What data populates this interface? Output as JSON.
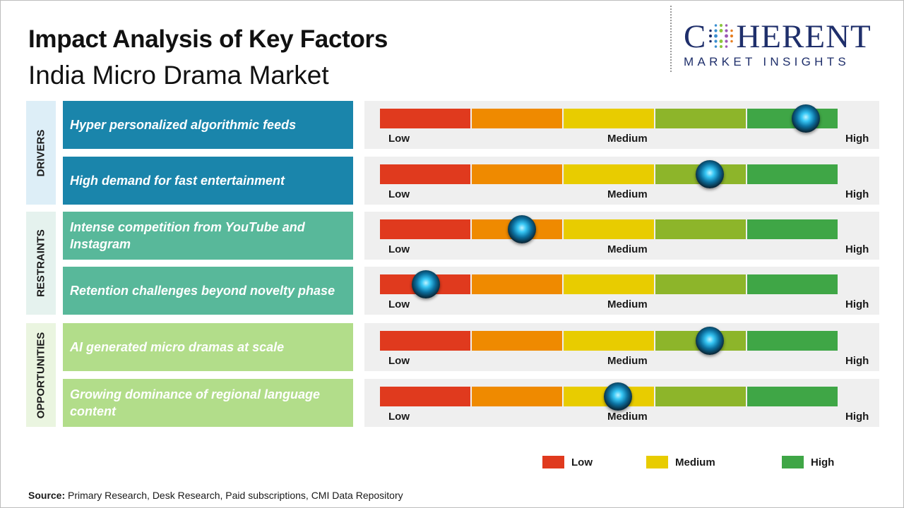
{
  "title": "Impact Analysis of Key Factors",
  "subtitle": "India Micro Drama Market",
  "logo": {
    "word_left": "C",
    "word_right": "HERENT",
    "sub": "MARKET INSIGHTS"
  },
  "colors": {
    "low": "#e03a1e",
    "low_medium": "#ef8a00",
    "medium": "#e8cc00",
    "medium_high": "#8db52a",
    "high": "#3fa646",
    "drivers": "#1a85ab",
    "drivers_band": "#ddeef7",
    "restraints": "#58b89a",
    "restraints_band": "#e5f2ee",
    "opportunities": "#b2dd8a",
    "opportunities_band": "#eaf5e0"
  },
  "chart_data": {
    "type": "bar",
    "scale": [
      "Low",
      "Medium",
      "High"
    ],
    "value_range": [
      0,
      5
    ],
    "groups": [
      {
        "name": "DRIVERS",
        "factors": [
          {
            "label": "Hyper personalized algorithmic feeds",
            "value": 4.65
          },
          {
            "label": "High demand for fast entertainment",
            "value": 3.6
          }
        ]
      },
      {
        "name": "RESTRAINTS",
        "factors": [
          {
            "label": "Intense competition from YouTube and Instagram",
            "value": 1.55
          },
          {
            "label": "Retention challenges beyond novelty phase",
            "value": 0.5
          }
        ]
      },
      {
        "name": "OPPORTUNITIES",
        "factors": [
          {
            "label": "AI generated micro dramas at scale",
            "value": 3.6
          },
          {
            "label": "Growing dominance of regional language content",
            "value": 2.6
          }
        ]
      }
    ],
    "legend": [
      "Low",
      "Medium",
      "High"
    ]
  },
  "tick_labels": {
    "low": "Low",
    "medium": "Medium",
    "high": "High"
  },
  "source": {
    "label": "Source:",
    "text": "Primary Research, Desk Research, Paid subscriptions, CMI Data Repository"
  }
}
